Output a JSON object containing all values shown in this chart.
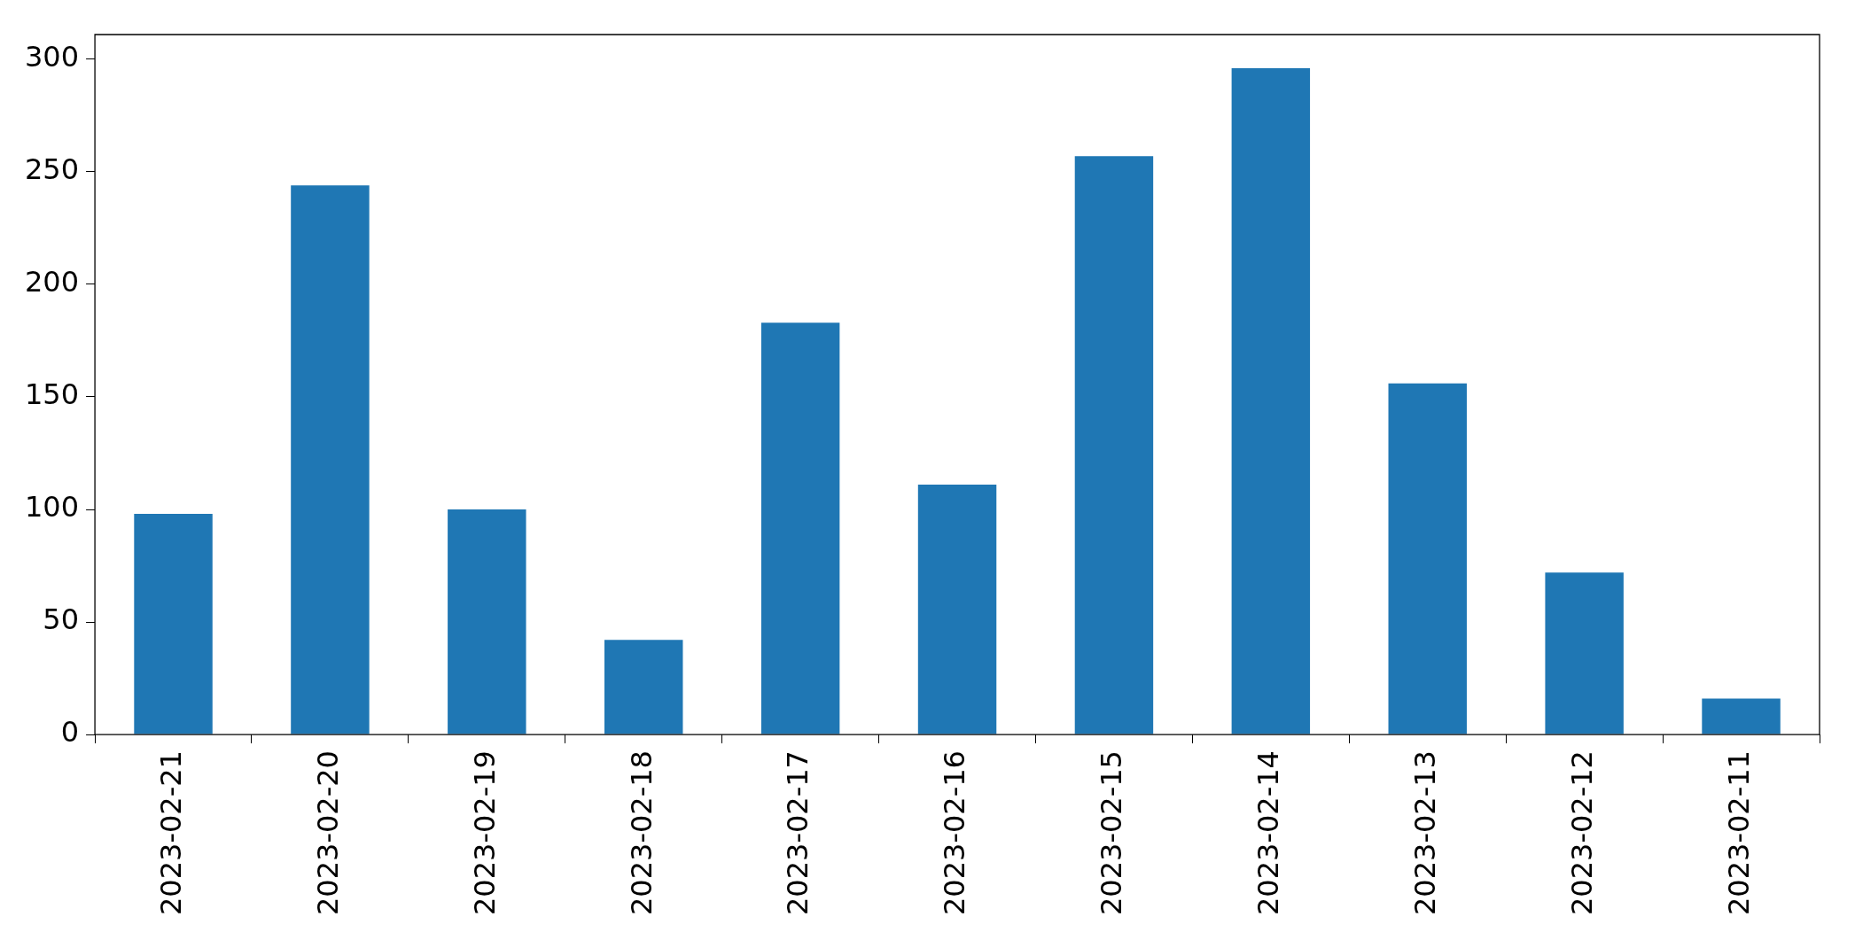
{
  "chart_data": {
    "type": "bar",
    "categories": [
      "2023-02-21",
      "2023-02-20",
      "2023-02-19",
      "2023-02-18",
      "2023-02-17",
      "2023-02-16",
      "2023-02-15",
      "2023-02-14",
      "2023-02-13",
      "2023-02-12",
      "2023-02-11"
    ],
    "values": [
      98,
      244,
      100,
      42,
      183,
      111,
      257,
      296,
      156,
      72,
      16
    ],
    "color": "#1f77b4",
    "ylim": [
      0,
      311
    ],
    "yticks": [
      0,
      50,
      100,
      150,
      200,
      250,
      300
    ],
    "legend": false
  }
}
